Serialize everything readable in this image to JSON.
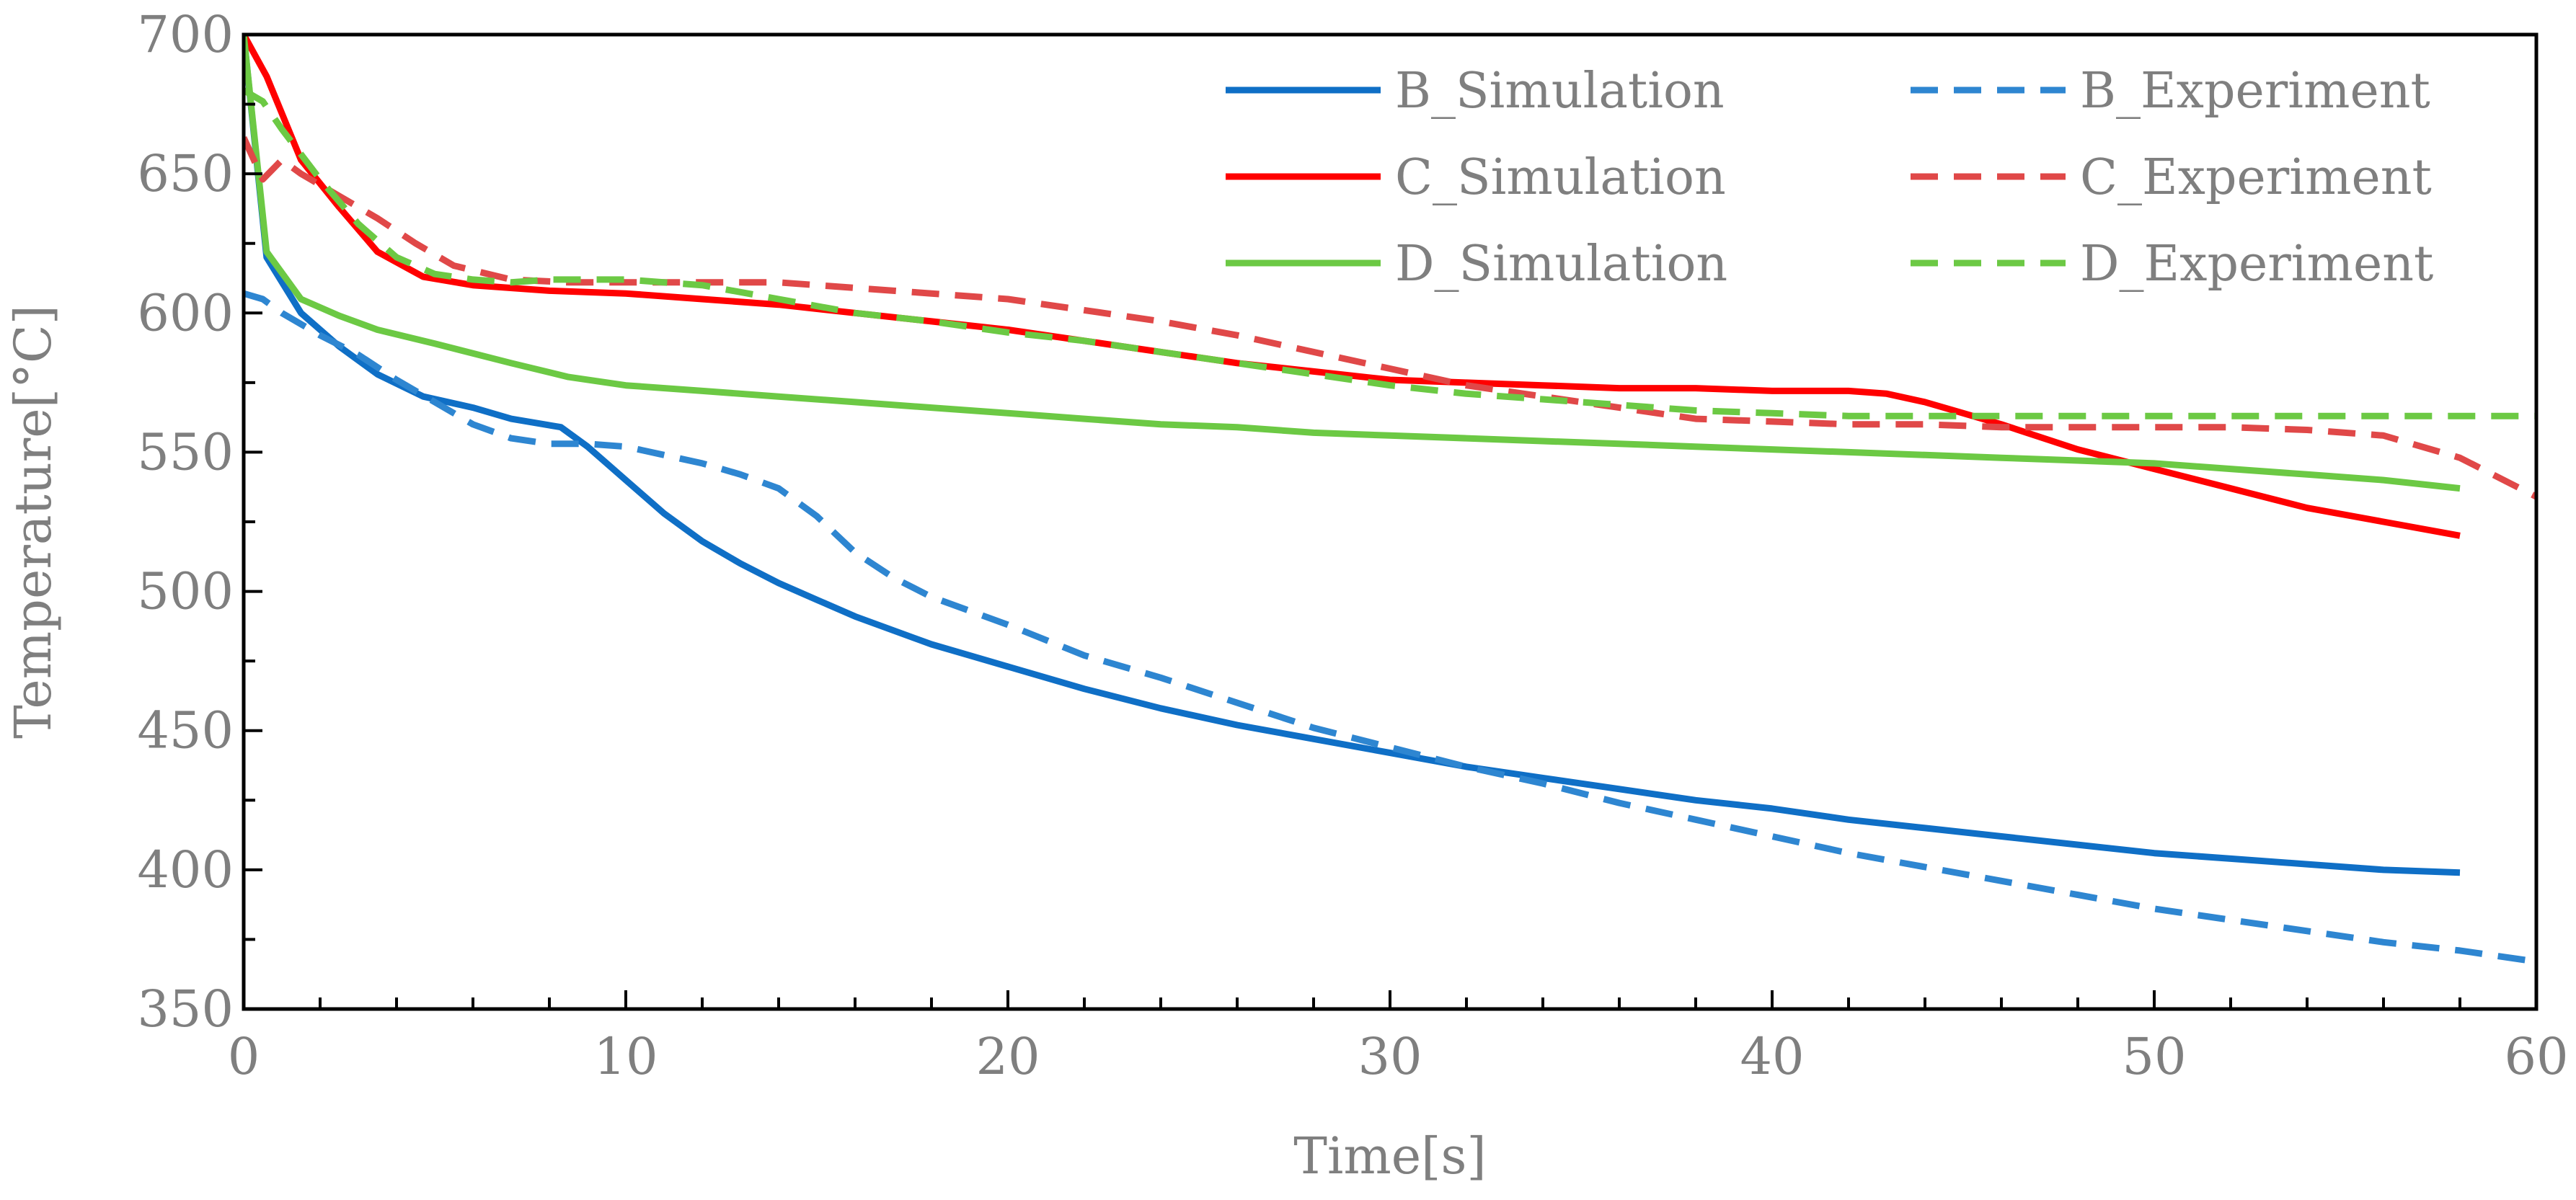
{
  "chart_data": {
    "type": "line",
    "title": "",
    "xlabel": "Time[s]",
    "ylabel": "Temperature[°C]",
    "xlim": [
      0,
      60
    ],
    "ylim": [
      350,
      700
    ],
    "x_ticks": [
      0,
      10,
      20,
      30,
      40,
      50,
      60
    ],
    "y_ticks": [
      350,
      400,
      450,
      500,
      550,
      600,
      650,
      700
    ],
    "x_tick_labels": [
      "0",
      "10",
      "20",
      "30",
      "40",
      "50",
      "60"
    ],
    "y_tick_labels": [
      "350",
      "400",
      "450",
      "500",
      "550",
      "600",
      "650",
      "700"
    ],
    "x_minor_step": 2,
    "y_minor_step": 25,
    "grid": false,
    "legend_position": "top-right",
    "series": [
      {
        "name": "B_Simulation",
        "color": "#0F6FC6",
        "dash": "solid",
        "x": [
          0,
          0.6,
          1.5,
          2.5,
          3.5,
          4.7,
          6,
          7,
          8.3,
          9,
          10,
          11,
          12,
          13,
          14,
          15,
          16,
          17,
          18,
          19,
          20,
          22,
          24,
          26,
          28,
          30,
          32,
          34,
          36,
          38,
          40,
          42,
          44,
          46,
          48,
          50,
          52,
          54,
          56,
          58
        ],
        "y": [
          700,
          620,
          600,
          588,
          578,
          570,
          566,
          562,
          559,
          552,
          540,
          528,
          518,
          510,
          503,
          497,
          491,
          486,
          481,
          477,
          473,
          465,
          458,
          452,
          447,
          442,
          437,
          433,
          429,
          425,
          422,
          418,
          415,
          412,
          409,
          406,
          404,
          402,
          400,
          399
        ]
      },
      {
        "name": "C_Simulation",
        "color": "#FF0000",
        "dash": "solid",
        "x": [
          0,
          0.6,
          1.5,
          2.5,
          3.5,
          4.7,
          6,
          8,
          10,
          12,
          14,
          16,
          18,
          20,
          22,
          24,
          26,
          28,
          30,
          32,
          34,
          36,
          38,
          40,
          42,
          43,
          44,
          45,
          46,
          48,
          50,
          52,
          54,
          56,
          58
        ],
        "y": [
          700,
          685,
          655,
          638,
          622,
          613,
          610,
          608,
          607,
          605,
          603,
          600,
          597,
          594,
          590,
          586,
          582,
          579,
          576,
          575,
          574,
          573,
          573,
          572,
          572,
          571,
          568,
          564,
          560,
          551,
          544,
          537,
          530,
          525,
          520
        ]
      },
      {
        "name": "D_Simulation",
        "color": "#6CC944",
        "dash": "solid",
        "x": [
          0,
          0.6,
          1.5,
          2.5,
          3.5,
          5,
          7,
          8.5,
          10,
          12,
          14,
          16,
          18,
          20,
          22,
          24,
          26,
          28,
          30,
          32,
          34,
          36,
          38,
          40,
          42,
          44,
          46,
          48,
          50,
          52,
          54,
          56,
          58
        ],
        "y": [
          700,
          622,
          605,
          599,
          594,
          589,
          582,
          577,
          574,
          572,
          570,
          568,
          566,
          564,
          562,
          560,
          559,
          557,
          556,
          555,
          554,
          553,
          552,
          551,
          550,
          549,
          548,
          547,
          546,
          544,
          542,
          540,
          537
        ]
      },
      {
        "name": "B_Experiment",
        "color": "#2E86D1",
        "dash": "dashed",
        "x": [
          0,
          0.5,
          1,
          2,
          3,
          4,
          5,
          6,
          7,
          8,
          9,
          10,
          11,
          12,
          13,
          14,
          15,
          16,
          17,
          18,
          20,
          22,
          24,
          26,
          28,
          30,
          32,
          34,
          36,
          38,
          40,
          42,
          44,
          46,
          48,
          50,
          52,
          54,
          56,
          58,
          60
        ],
        "y": [
          607,
          605,
          600,
          592,
          585,
          576,
          568,
          560,
          555,
          553,
          553,
          552,
          549,
          546,
          542,
          537,
          527,
          514,
          505,
          498,
          488,
          477,
          469,
          460,
          451,
          444,
          437,
          431,
          424,
          418,
          412,
          406,
          401,
          396,
          391,
          386,
          382,
          378,
          374,
          371,
          367
        ]
      },
      {
        "name": "C_Experiment",
        "color": "#E04848",
        "dash": "dashed",
        "x": [
          0,
          0.5,
          1,
          1.5,
          2.5,
          3.5,
          4.5,
          5.5,
          7,
          8.5,
          10,
          12,
          14,
          16,
          18,
          20,
          22,
          24,
          26,
          28,
          30,
          32,
          34,
          36,
          38,
          40,
          42,
          44,
          46,
          48,
          50,
          52,
          54,
          56,
          58,
          60
        ],
        "y": [
          663,
          648,
          655,
          650,
          642,
          634,
          625,
          617,
          612,
          611,
          611,
          611,
          611,
          609,
          607,
          605,
          601,
          597,
          592,
          586,
          580,
          574,
          570,
          566,
          562,
          561,
          560,
          560,
          559,
          559,
          559,
          559,
          558,
          556,
          548,
          534
        ]
      },
      {
        "name": "D_Experiment",
        "color": "#6CC944",
        "dash": "dashed",
        "x": [
          0,
          0.5,
          1,
          2,
          3,
          4,
          5,
          6,
          7,
          8,
          10,
          12,
          14,
          16,
          18,
          20,
          22,
          24,
          26,
          28,
          30,
          32,
          34,
          36,
          38,
          40,
          42,
          44,
          46,
          48,
          50,
          52,
          54,
          56,
          58,
          60
        ],
        "y": [
          680,
          676,
          666,
          648,
          632,
          620,
          614,
          612,
          611,
          612,
          612,
          610,
          605,
          600,
          597,
          593,
          590,
          586,
          582,
          578,
          574,
          571,
          569,
          567,
          565,
          564,
          563,
          563,
          563,
          563,
          563,
          563,
          563,
          563,
          563,
          563
        ]
      }
    ]
  }
}
